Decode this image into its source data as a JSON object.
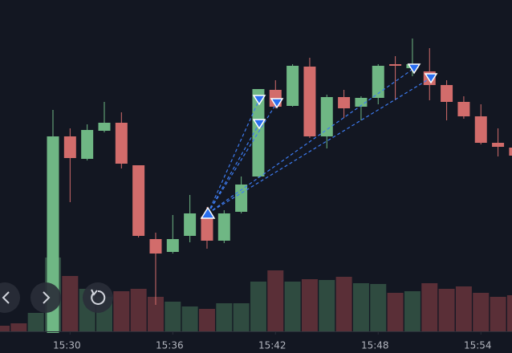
{
  "chart_data": {
    "type": "candlestick",
    "categories": [
      null,
      null,
      null,
      null,
      "15:30",
      null,
      null,
      null,
      null,
      null,
      "15:36",
      null,
      null,
      null,
      null,
      null,
      "15:42",
      null,
      null,
      null,
      null,
      null,
      "15:48",
      null,
      null,
      null,
      null,
      null,
      "15:54",
      null,
      null
    ],
    "open": [
      null,
      null,
      null,
      25,
      270,
      242,
      277,
      287,
      234,
      142,
      126,
      146,
      170,
      140,
      176,
      220,
      328,
      308,
      357,
      270,
      319,
      307,
      318,
      360,
      355,
      351,
      334,
      313,
      295,
      262,
      256
    ],
    "high": [
      null,
      null,
      null,
      303,
      280,
      285,
      313,
      300,
      234,
      150,
      172,
      197,
      182,
      178,
      220,
      329,
      340,
      360,
      368,
      322,
      328,
      320,
      360,
      370,
      392,
      380,
      340,
      320,
      310,
      280,
      260
    ],
    "low": [
      null,
      null,
      null,
      25,
      188,
      240,
      275,
      230,
      144,
      60,
      124,
      138,
      130,
      137,
      174,
      218,
      305,
      307,
      268,
      255,
      293,
      290,
      310,
      315,
      345,
      315,
      290,
      292,
      260,
      245,
      244
    ],
    "close": [
      null,
      null,
      null,
      270,
      243,
      278,
      287,
      236,
      146,
      124,
      142,
      174,
      140,
      174,
      210,
      329,
      307,
      358,
      270,
      319,
      305,
      318,
      358,
      358,
      360,
      334,
      313,
      295,
      262,
      257,
      246
    ],
    "volume": [
      7,
      10,
      23,
      92,
      69,
      53,
      43,
      50,
      53,
      43,
      37,
      31,
      28,
      35,
      35,
      62,
      76,
      62,
      65,
      64,
      68,
      60,
      59,
      48,
      50,
      60,
      53,
      56,
      48,
      43,
      45
    ],
    "volume_colors": [
      "#5a2f37",
      "#5a2f37",
      "#2f4b40",
      "#2f4b40",
      "#5a2f37",
      "#2f4b40",
      "#2f4b40",
      "#5a2f37",
      "#5a2f37",
      "#5a2f37",
      "#2f4b40",
      "#2f4b40",
      "#5a2f37",
      "#2f4b40",
      "#2f4b40",
      "#2f4b40",
      "#5a2f37",
      "#2f4b40",
      "#5a2f37",
      "#2f4b40",
      "#5a2f37",
      "#2f4b40",
      "#2f4b40",
      "#5a2f37",
      "#2f4b40",
      "#5a2f37",
      "#5a2f37",
      "#5a2f37",
      "#5a2f37",
      "#5a2f37",
      "#5a2f37"
    ],
    "up_color": "#6fb784",
    "down_color": "#d26c6b",
    "ylim": [
      0,
      440
    ],
    "volume_ylim": [
      0,
      413
    ]
  }
}
